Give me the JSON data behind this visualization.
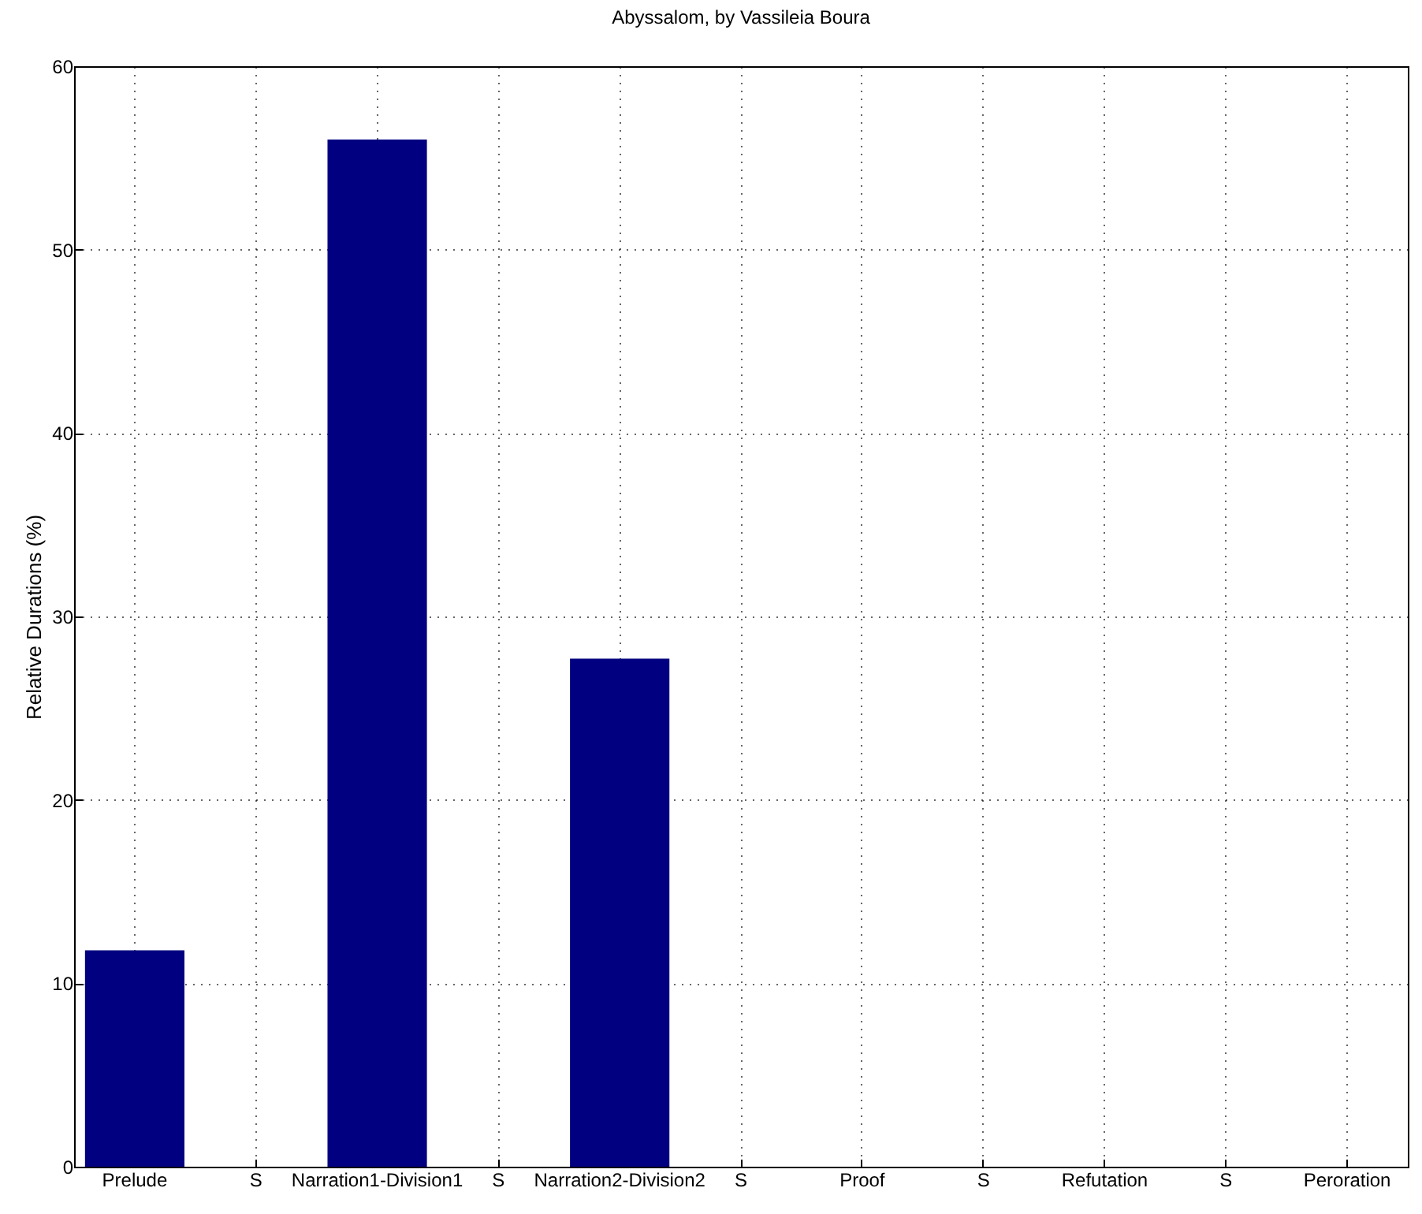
{
  "chart_data": {
    "type": "bar",
    "title": "Abyssalom, by Vassileia Boura",
    "ylabel": "Relative Durations (%)",
    "categories": [
      "Prelude",
      "S",
      "Narration1-Division1",
      "S",
      "Narration2-Division2",
      "S",
      "Proof",
      "S",
      "Refutation",
      "S",
      "Peroration"
    ],
    "values": [
      11.8,
      0,
      56,
      0,
      27.7,
      0,
      0,
      0,
      0,
      0,
      0
    ],
    "color": "#000080",
    "ylim": [
      0,
      60
    ],
    "yticks": [
      0,
      10,
      20,
      30,
      40,
      50,
      60
    ],
    "grid": true
  }
}
